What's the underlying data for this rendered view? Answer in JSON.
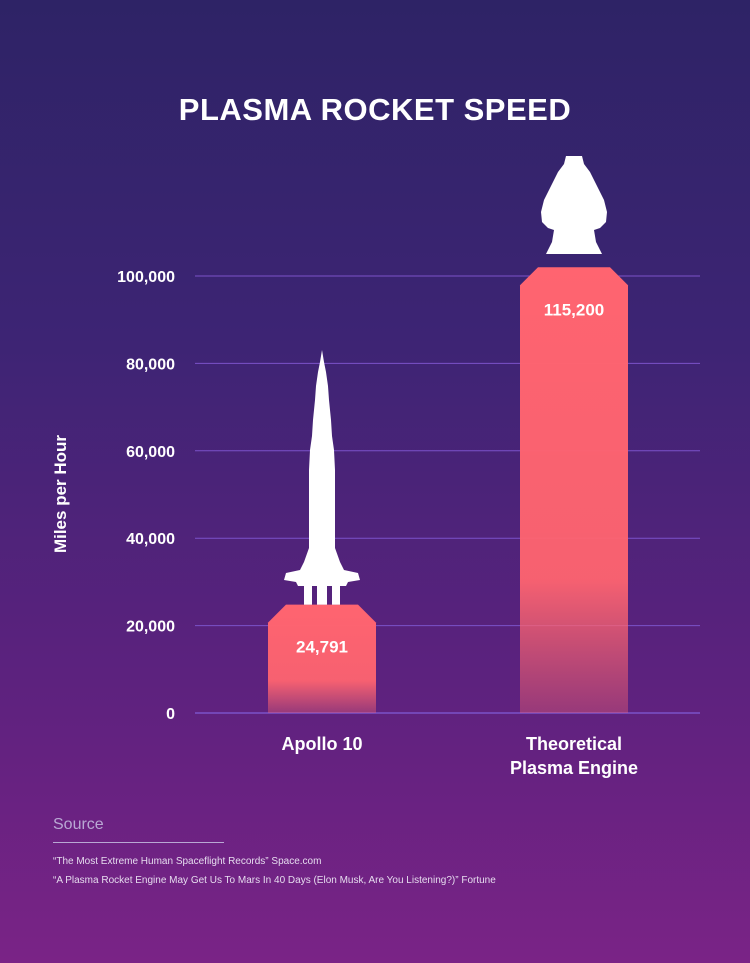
{
  "title": "PLASMA ROCKET SPEED",
  "colors": {
    "background_top": "#2e2366",
    "background_bottom": "#7a2386",
    "bar": "#ff6470",
    "gridline": "#7b52c9",
    "rocket": "#ffffff"
  },
  "chart_data": {
    "type": "bar",
    "title": "PLASMA ROCKET SPEED",
    "ylabel": "Miles per Hour",
    "xlabel": "",
    "categories": [
      "Apollo 10",
      "Theoretical\nPlasma Engine"
    ],
    "category_lines": [
      [
        "Apollo 10"
      ],
      [
        "Theoretical",
        "Plasma Engine"
      ]
    ],
    "values": [
      24791,
      115200
    ],
    "data_labels": [
      "24,791",
      "115,200"
    ],
    "ylim": [
      0,
      100000
    ],
    "yticks": [
      0,
      20000,
      40000,
      60000,
      80000,
      100000
    ],
    "ytick_labels": [
      "0",
      "20,000",
      "40,000",
      "60,000",
      "80,000",
      "100,000"
    ],
    "grid": true,
    "legend": "none",
    "decorations": [
      "rocket-icon above each bar"
    ]
  },
  "source": {
    "heading": "Source",
    "lines": [
      "“The Most Extreme Human Spaceflight Records” Space.com",
      "“A Plasma Rocket Engine May Get Us To Mars In 40 Days (Elon Musk, Are You Listening?)” Fortune"
    ]
  }
}
